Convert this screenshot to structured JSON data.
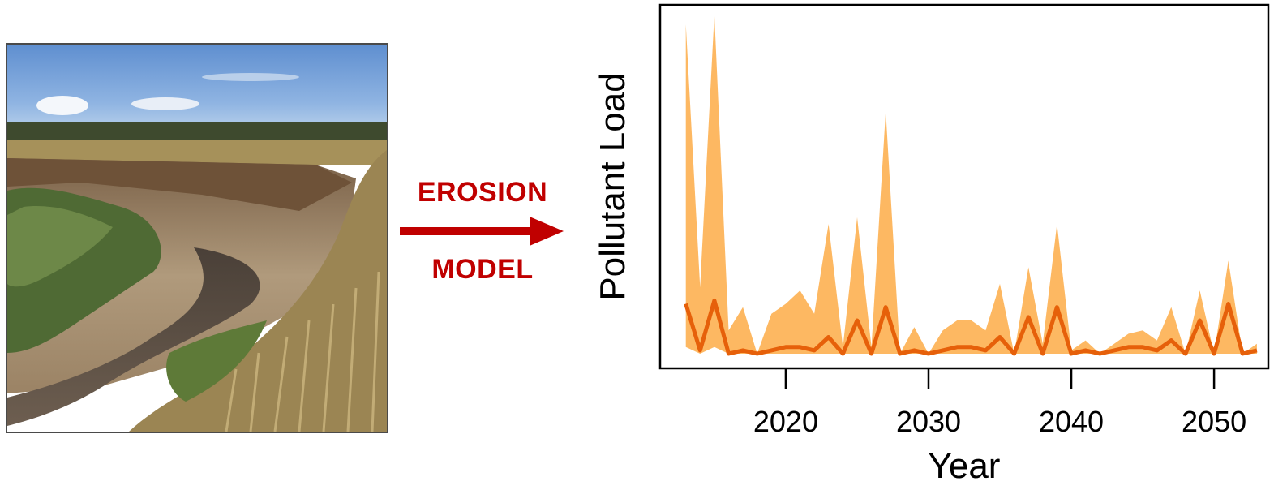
{
  "figure": {
    "photo": {
      "subject": "eroded-stream-bank-photo"
    },
    "arrow": {
      "label_top": "EROSION",
      "label_bottom": "MODEL",
      "color": "#c00000"
    }
  },
  "chart_data": {
    "type": "area",
    "title": "",
    "xlabel": "Year",
    "ylabel": "Pollutant Load",
    "xlim": [
      2011.2,
      2053.8
    ],
    "ylim": [
      0,
      1
    ],
    "x_ticks": [
      2020,
      2030,
      2040,
      2050
    ],
    "y_ticks": [],
    "grid": false,
    "band_color": "#fdb862",
    "line_color": "#e6600a",
    "x": [
      2013,
      2014,
      2015,
      2016,
      2017,
      2018,
      2019,
      2020,
      2021,
      2022,
      2023,
      2024,
      2025,
      2026,
      2027,
      2028,
      2029,
      2030,
      2031,
      2032,
      2033,
      2034,
      2035,
      2036,
      2037,
      2038,
      2039,
      2040,
      2041,
      2042,
      2043,
      2044,
      2045,
      2046,
      2047,
      2048,
      2049,
      2050,
      2051,
      2052,
      2053
    ],
    "upper": [
      0.99,
      0.2,
      1.02,
      0.07,
      0.14,
      0.0,
      0.12,
      0.15,
      0.19,
      0.12,
      0.39,
      0.02,
      0.41,
      0.02,
      0.73,
      0.0,
      0.08,
      0.0,
      0.07,
      0.1,
      0.1,
      0.07,
      0.21,
      0.0,
      0.26,
      0.03,
      0.39,
      0.01,
      0.04,
      0.0,
      0.03,
      0.06,
      0.07,
      0.04,
      0.14,
      0.0,
      0.19,
      0.0,
      0.28,
      0.0,
      0.03
    ],
    "mean": [
      0.15,
      0.01,
      0.16,
      0.0,
      0.01,
      0.0,
      0.01,
      0.02,
      0.02,
      0.01,
      0.05,
      0.0,
      0.1,
      0.0,
      0.14,
      0.0,
      0.01,
      0.0,
      0.01,
      0.02,
      0.02,
      0.01,
      0.05,
      0.0,
      0.11,
      0.0,
      0.14,
      0.0,
      0.01,
      0.0,
      0.01,
      0.02,
      0.02,
      0.01,
      0.04,
      0.0,
      0.1,
      0.0,
      0.15,
      0.0,
      0.01
    ],
    "lower": [
      0.02,
      0.0,
      0.02,
      0.0,
      0.0,
      0.0,
      0.0,
      0.0,
      0.0,
      0.0,
      0.0,
      0.0,
      0.0,
      0.0,
      0.0,
      0.0,
      0.0,
      0.0,
      0.0,
      0.0,
      0.0,
      0.0,
      0.0,
      0.0,
      0.0,
      0.0,
      0.0,
      0.0,
      0.0,
      0.0,
      0.0,
      0.0,
      0.0,
      0.0,
      0.0,
      0.0,
      0.0,
      0.0,
      0.0,
      0.0,
      0.0
    ]
  }
}
